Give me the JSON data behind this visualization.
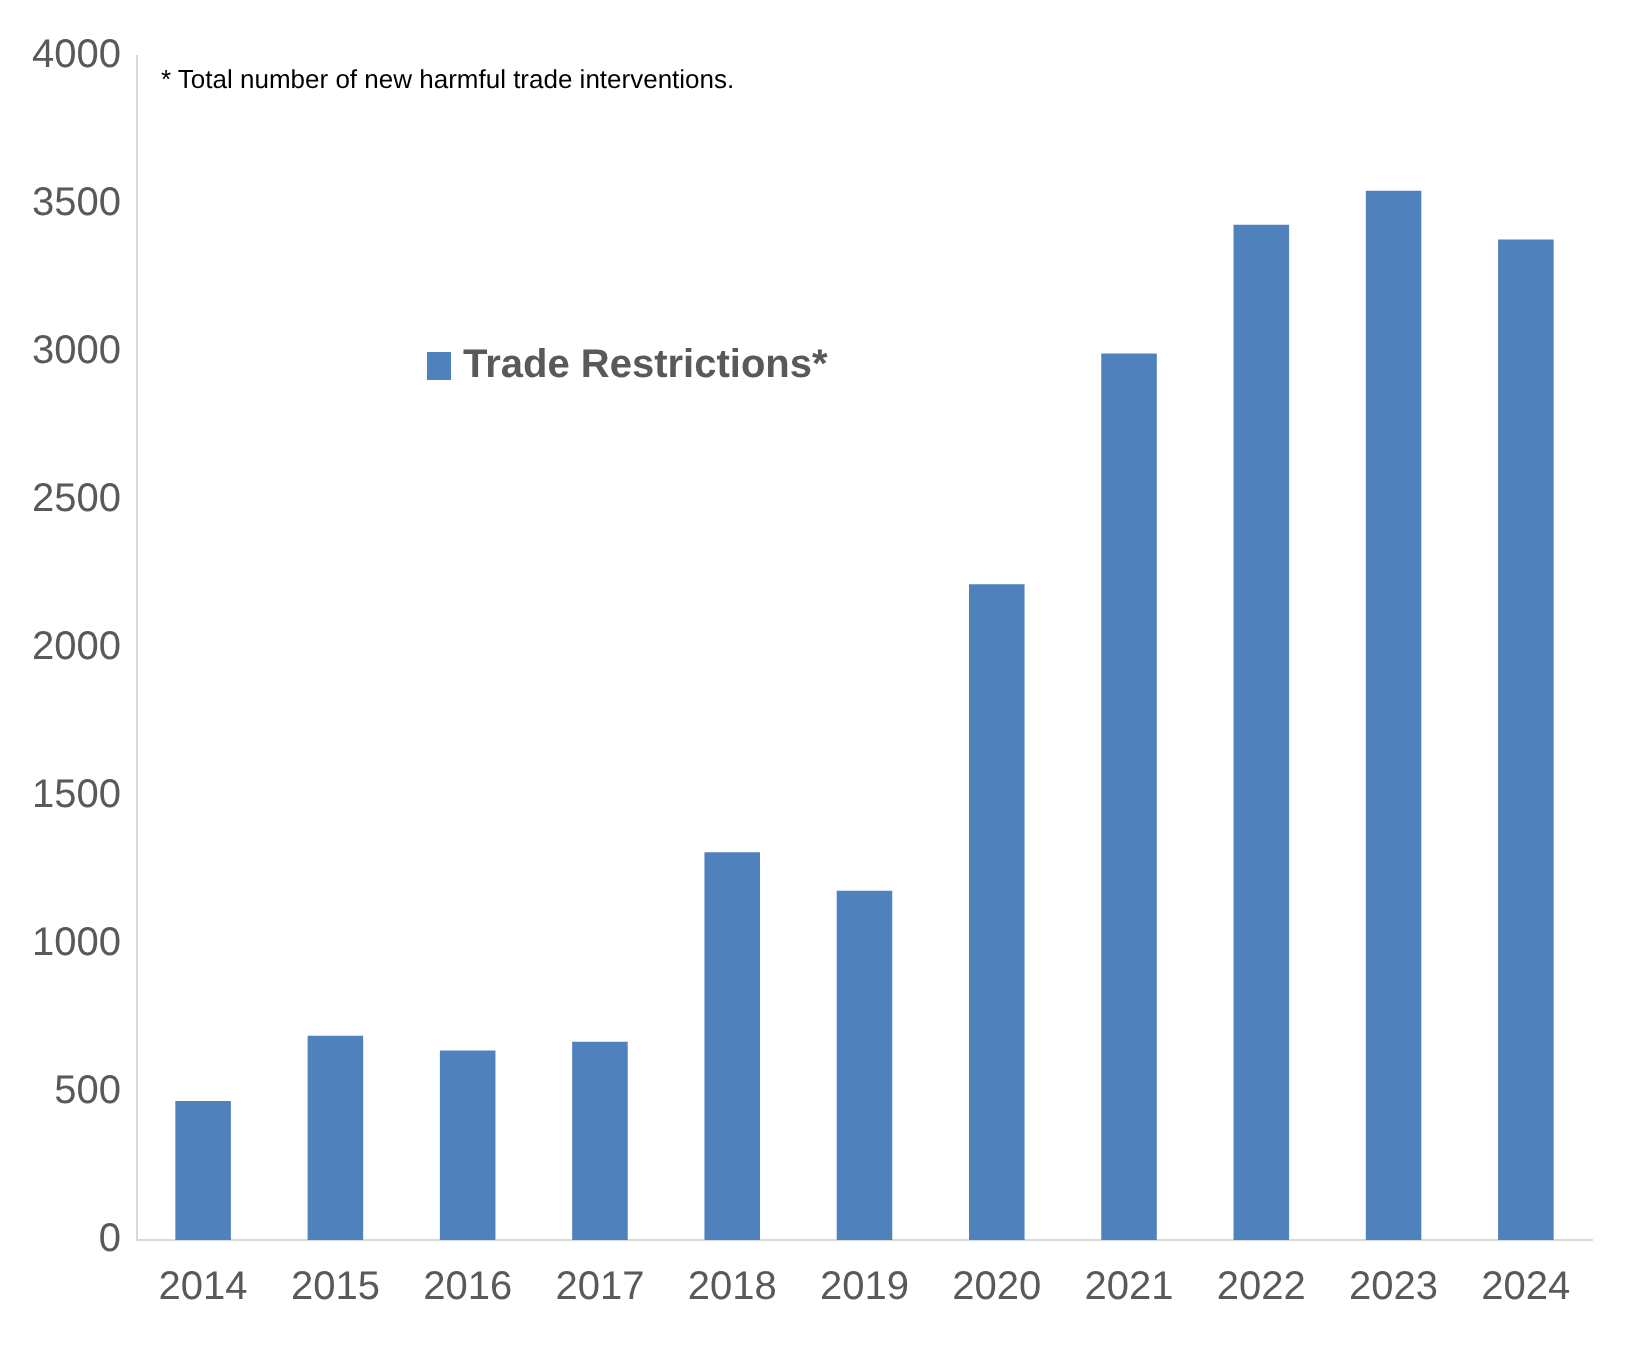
{
  "chart_data": {
    "type": "bar",
    "categories": [
      "2014",
      "2015",
      "2016",
      "2017",
      "2018",
      "2019",
      "2020",
      "2021",
      "2022",
      "2023",
      "2024"
    ],
    "series": [
      {
        "name": "Trade Restrictions*",
        "color": "#4f81bd",
        "values": [
          470,
          690,
          640,
          670,
          1310,
          1180,
          2215,
          2995,
          3430,
          3545,
          3380
        ]
      }
    ],
    "ylim": [
      0,
      4000
    ],
    "yticks": [
      0,
      500,
      1000,
      1500,
      2000,
      2500,
      3000,
      3500,
      4000
    ],
    "grid": false,
    "legend": "top left",
    "annotations": [
      "* Total number of new harmful trade interventions."
    ]
  }
}
